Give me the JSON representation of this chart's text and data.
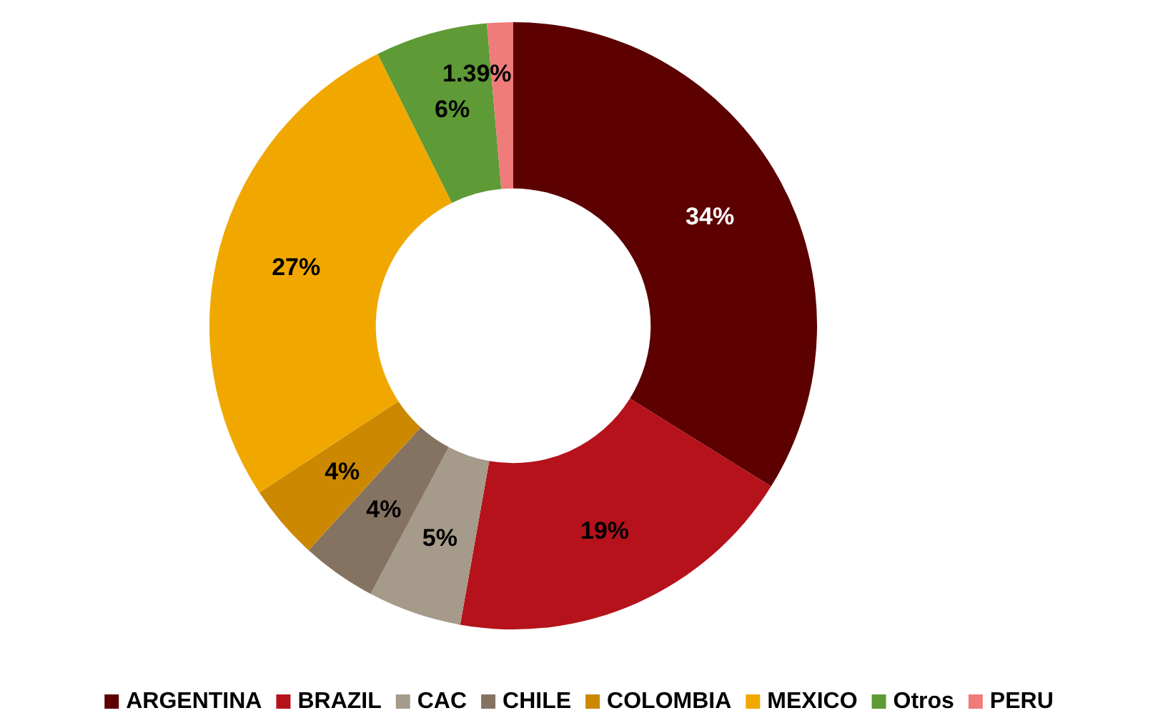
{
  "chart_data": {
    "type": "donut",
    "categories": [
      "ARGENTINA",
      "BRAZIL",
      "CAC",
      "CHILE",
      "COLOMBIA",
      "MEXICO",
      "Otros",
      "PERU"
    ],
    "values": [
      34,
      19,
      5,
      4,
      4,
      27,
      6,
      1.39
    ],
    "value_labels": [
      "34%",
      "19%",
      "5%",
      "4%",
      "4%",
      "27%",
      "6%",
      "1.39%"
    ],
    "colors": [
      "#5c0000",
      "#b5121b",
      "#a69a8a",
      "#857362",
      "#cc8800",
      "#f0a800",
      "#5e9a36",
      "#f07b7b"
    ],
    "legend": "bottom"
  }
}
